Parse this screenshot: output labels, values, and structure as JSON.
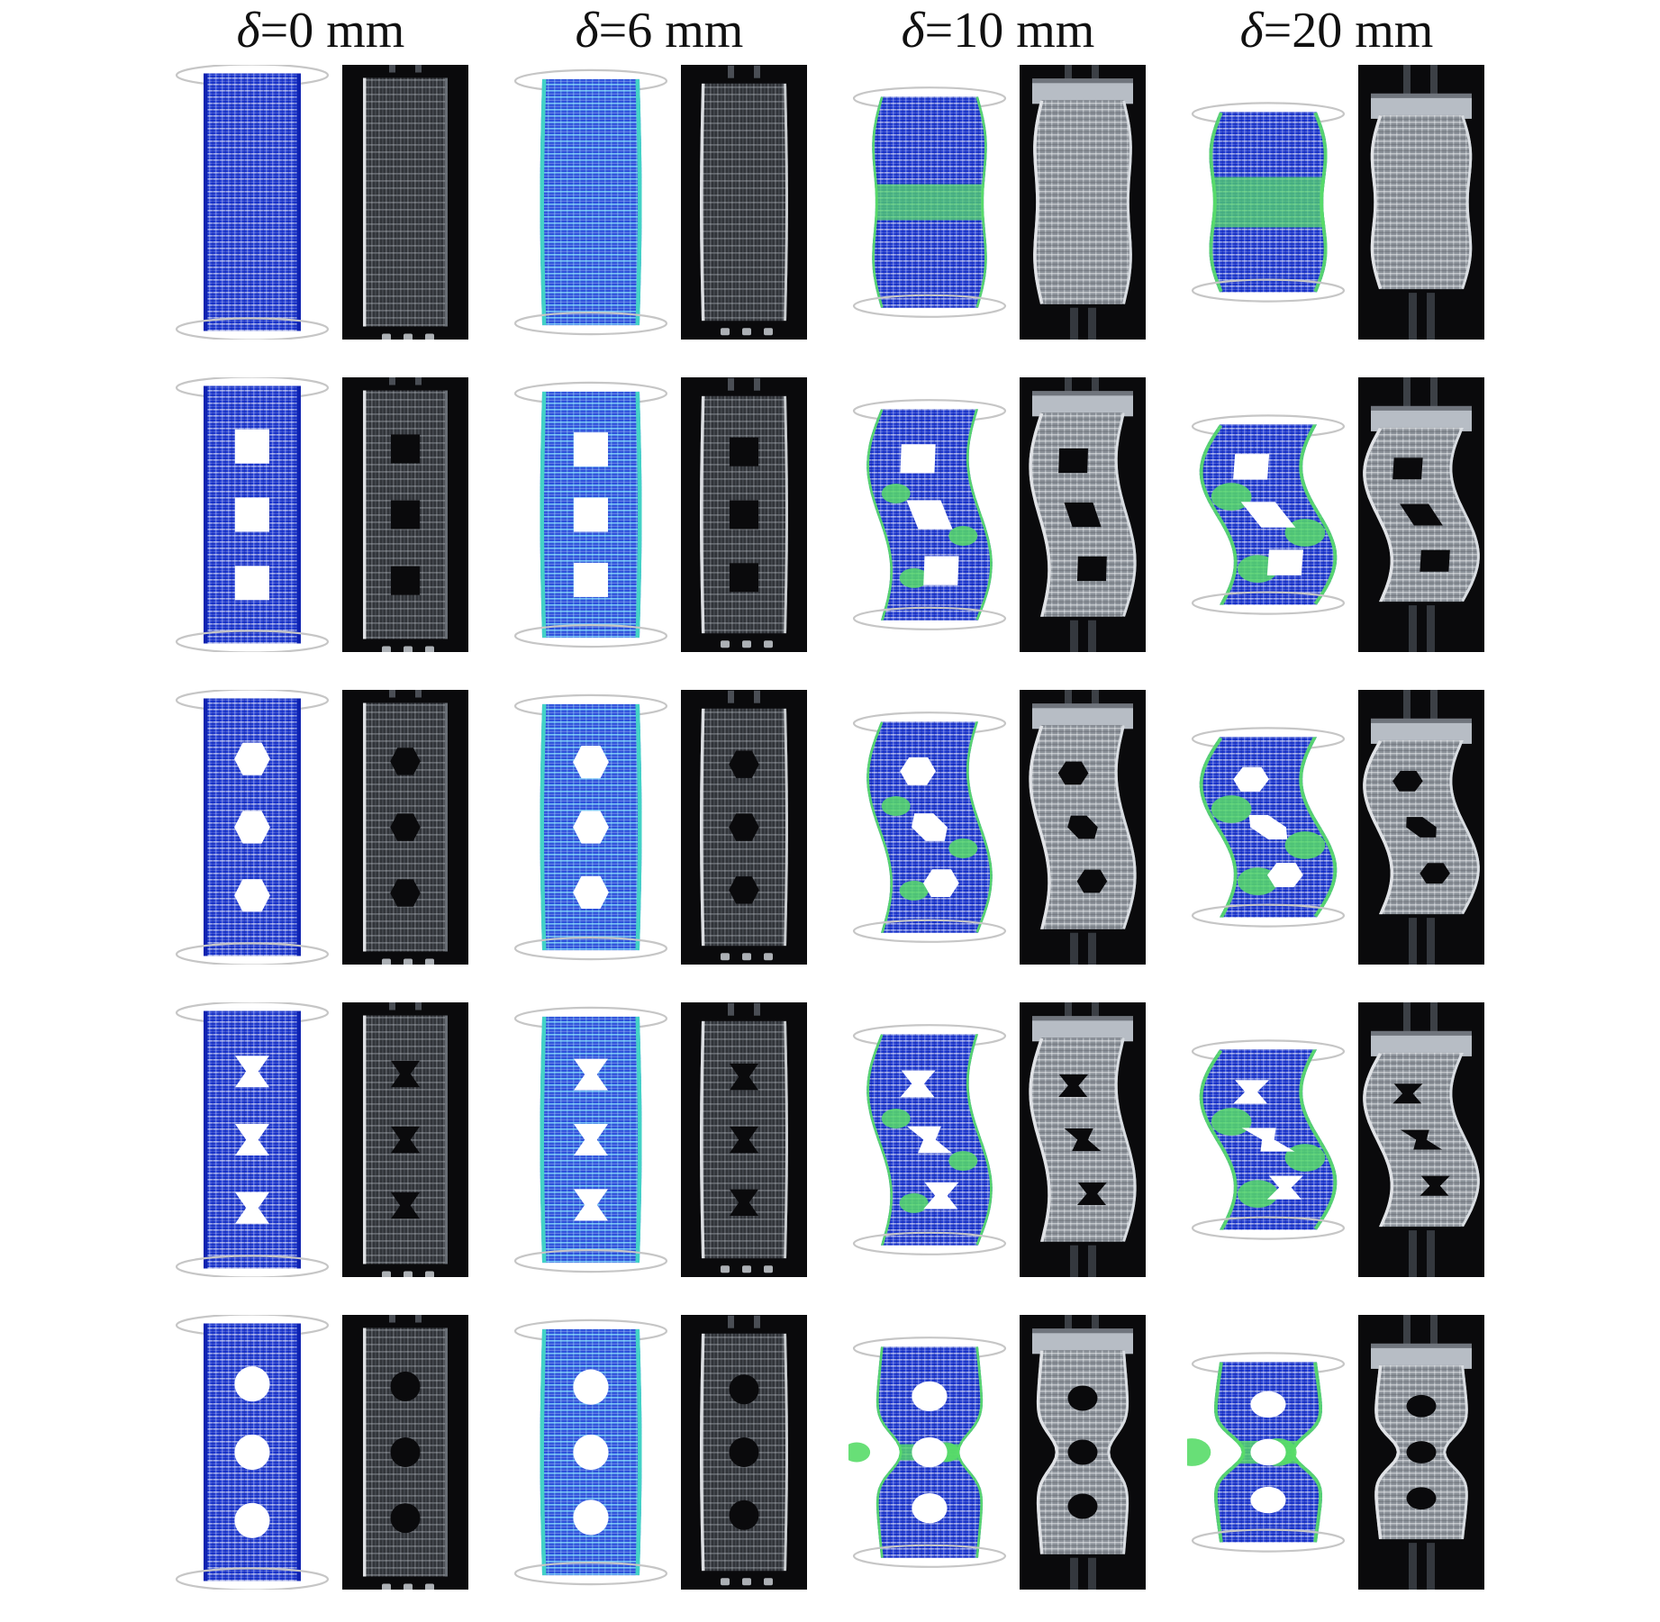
{
  "figure": {
    "description": "Grid comparing finite-element simulations (blue mesh contour plots) with experiment photographs (dark specimen photos) of lattice tube specimens under increasing axial crush displacement",
    "columns": [
      {
        "symbol": "δ",
        "suffix": "=0 mm",
        "displacement_mm": 0,
        "deformation": "undeformed"
      },
      {
        "symbol": "δ",
        "suffix": "=6 mm",
        "displacement_mm": 6,
        "deformation": "onset"
      },
      {
        "symbol": "δ",
        "suffix": "=10 mm",
        "displacement_mm": 10,
        "deformation": "buckled"
      },
      {
        "symbol": "δ",
        "suffix": "=20 mm",
        "displacement_mm": 20,
        "deformation": "collapsed"
      }
    ],
    "rows": [
      {
        "name": "plain-tube",
        "hole_shape": "none",
        "hole_count": 0,
        "buckling_mode": "barrel"
      },
      {
        "name": "square-holes",
        "hole_shape": "square",
        "hole_count": 3,
        "buckling_mode": "shear-s"
      },
      {
        "name": "hexagon-holes",
        "hole_shape": "hexagon",
        "hole_count": 3,
        "buckling_mode": "shear-s"
      },
      {
        "name": "bowtie-holes",
        "hole_shape": "bowtie",
        "hole_count": 3,
        "buckling_mode": "shear-s"
      },
      {
        "name": "circle-holes",
        "hole_shape": "circle",
        "hole_count": 3,
        "buckling_mode": "mid-pinch"
      }
    ],
    "pair": {
      "left": "simulation",
      "right": "experiment"
    },
    "colors": {
      "background": "#ffffff",
      "sim_blue": "#1d38d0",
      "sim_blue_rail": "#0f23b0",
      "sim_cyan": "#2e52db",
      "sim_cyan_rail": "#43d2c6",
      "strain_green": "#58dc68",
      "clamp_ring": "#c6c6c6",
      "photo_background": "#0a0a0c",
      "photo_mesh_dark": "#313439",
      "photo_mesh_light": "#8b9199",
      "photo_rail": "#e4e6e9",
      "header_text": "#111111"
    }
  }
}
